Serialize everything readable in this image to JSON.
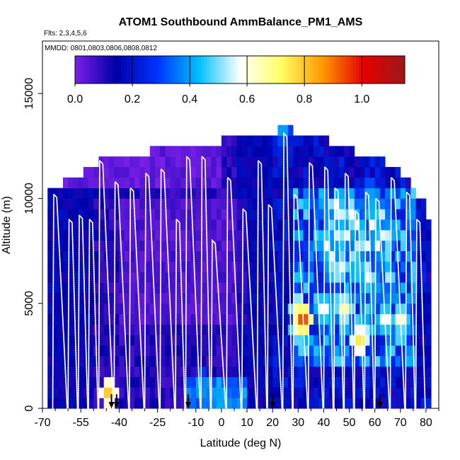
{
  "chart_data": {
    "type": "heatmap",
    "title": "ATOM1 Southbound AmmBalance_PM1_AMS",
    "subtitle_flights": "Flts: 2,3,4,5,6",
    "subtitle_dates": "MMDD: 0801,0803,0806,0808,0812",
    "xlabel": "Latitude (deg N)",
    "ylabel": "Altitude (m)",
    "xlim": [
      -70,
      85
    ],
    "ylim": [
      0,
      17500
    ],
    "x_ticks": [
      -70,
      -55,
      -40,
      -25,
      -10,
      0,
      10,
      20,
      30,
      40,
      50,
      60,
      70,
      80
    ],
    "x_tick_labels": [
      "-70",
      "-55",
      "-40",
      "-25",
      "-10",
      "0",
      "10",
      "20",
      "30",
      "40",
      "50",
      "60",
      "70",
      "80"
    ],
    "y_ticks": [
      0,
      5000,
      10000,
      15000
    ],
    "y_tick_labels": [
      "0",
      "5000",
      "10000",
      "15000"
    ],
    "colorbar": {
      "min": 0.0,
      "max": 1.15,
      "ticks": [
        0.0,
        0.2,
        0.4,
        0.6,
        0.8,
        1.0
      ],
      "tick_labels": [
        "0.0",
        "0.2",
        "0.4",
        "0.6",
        "0.8",
        "1.0"
      ],
      "colors": [
        "#7a1fe8",
        "#0000a8",
        "#0033ff",
        "#00bfff",
        "#ffffff",
        "#ffff66",
        "#ff9900",
        "#e60000",
        "#9c1818"
      ]
    },
    "cell_size": {
      "lat_deg": 2.0,
      "alt_m": 500
    },
    "rows": [
      {
        "alt": 250,
        "lat_min": -67,
        "lat_max": 81
      },
      {
        "alt": 750,
        "lat_min": -67,
        "lat_max": 81
      },
      {
        "alt": 1250,
        "lat_min": -67,
        "lat_max": 81
      },
      {
        "alt": 1750,
        "lat_min": -67,
        "lat_max": 81
      },
      {
        "alt": 2250,
        "lat_min": -67,
        "lat_max": 81
      },
      {
        "alt": 2750,
        "lat_min": -67,
        "lat_max": 81
      },
      {
        "alt": 3250,
        "lat_min": -67,
        "lat_max": 81
      },
      {
        "alt": 3750,
        "lat_min": -67,
        "lat_max": 81
      },
      {
        "alt": 4250,
        "lat_min": -67,
        "lat_max": 81
      },
      {
        "alt": 4750,
        "lat_min": -67,
        "lat_max": 81
      },
      {
        "alt": 5250,
        "lat_min": -67,
        "lat_max": 81
      },
      {
        "alt": 5750,
        "lat_min": -67,
        "lat_max": 81
      },
      {
        "alt": 6250,
        "lat_min": -67,
        "lat_max": 81
      },
      {
        "alt": 6750,
        "lat_min": -67,
        "lat_max": 81
      },
      {
        "alt": 7250,
        "lat_min": -67,
        "lat_max": 81
      },
      {
        "alt": 7750,
        "lat_min": -67,
        "lat_max": 81
      },
      {
        "alt": 8250,
        "lat_min": -67,
        "lat_max": 81
      },
      {
        "alt": 8750,
        "lat_min": -67,
        "lat_max": 81
      },
      {
        "alt": 9250,
        "lat_min": -67,
        "lat_max": 79
      },
      {
        "alt": 9750,
        "lat_min": -67,
        "lat_max": 79
      },
      {
        "alt": 10250,
        "lat_min": -67,
        "lat_max": 75
      },
      {
        "alt": 10750,
        "lat_min": -61,
        "lat_max": 73
      },
      {
        "alt": 11250,
        "lat_min": -53,
        "lat_max": 69
      },
      {
        "alt": 11750,
        "lat_min": -47,
        "lat_max": 63
      },
      {
        "alt": 12250,
        "lat_min": -27,
        "lat_max": 51
      },
      {
        "alt": 12750,
        "lat_min": 1,
        "lat_max": 41
      },
      {
        "alt": 13250,
        "lat_min": 23,
        "lat_max": 27
      }
    ],
    "hotspots": [
      {
        "lat": 32,
        "alt": 4250,
        "value": 1.05
      },
      {
        "lat": 30,
        "alt": 4750,
        "value": 0.75
      },
      {
        "lat": 30,
        "alt": 3750,
        "value": 0.7
      },
      {
        "lat": 40,
        "alt": 4750,
        "value": 0.65
      },
      {
        "lat": 48,
        "alt": 4750,
        "value": 0.75
      },
      {
        "lat": 54,
        "alt": 3250,
        "value": 0.85
      },
      {
        "lat": 56,
        "alt": 3750,
        "value": 0.6
      },
      {
        "lat": 64,
        "alt": 4250,
        "value": 0.65
      },
      {
        "lat": 70,
        "alt": 4250,
        "value": 0.7
      },
      {
        "lat": 46,
        "alt": 8250,
        "value": 0.58
      },
      {
        "lat": 52,
        "alt": 9250,
        "value": 0.5
      },
      {
        "lat": 58,
        "alt": 10250,
        "value": 0.45
      },
      {
        "lat": -44,
        "alt": 750,
        "value": 0.9
      },
      {
        "lat": -8,
        "alt": 1250,
        "value": 0.42
      },
      {
        "lat": -2,
        "alt": 750,
        "value": 0.45
      },
      {
        "lat": 24,
        "alt": 13250,
        "value": 0.45
      }
    ],
    "profile_tops_lat": [
      -66,
      -60,
      -56,
      -52,
      -48,
      -42,
      -36,
      -30,
      -24,
      -18,
      -14,
      -8,
      -4,
      2,
      8,
      14,
      18,
      24,
      28,
      34,
      40,
      44,
      48,
      52,
      56,
      60,
      66,
      72,
      76
    ],
    "profile_tops_alt": [
      10200,
      9000,
      9200,
      9000,
      11800,
      10800,
      10500,
      11200,
      11400,
      9000,
      12000,
      12000,
      8000,
      11000,
      9500,
      11800,
      9700,
      13100,
      10200,
      11700,
      11500,
      10500,
      11200,
      9400,
      10300,
      10000,
      11000,
      10300,
      9000
    ],
    "arrow_markers_lat": [
      -43,
      -41,
      -13,
      20,
      62
    ]
  }
}
